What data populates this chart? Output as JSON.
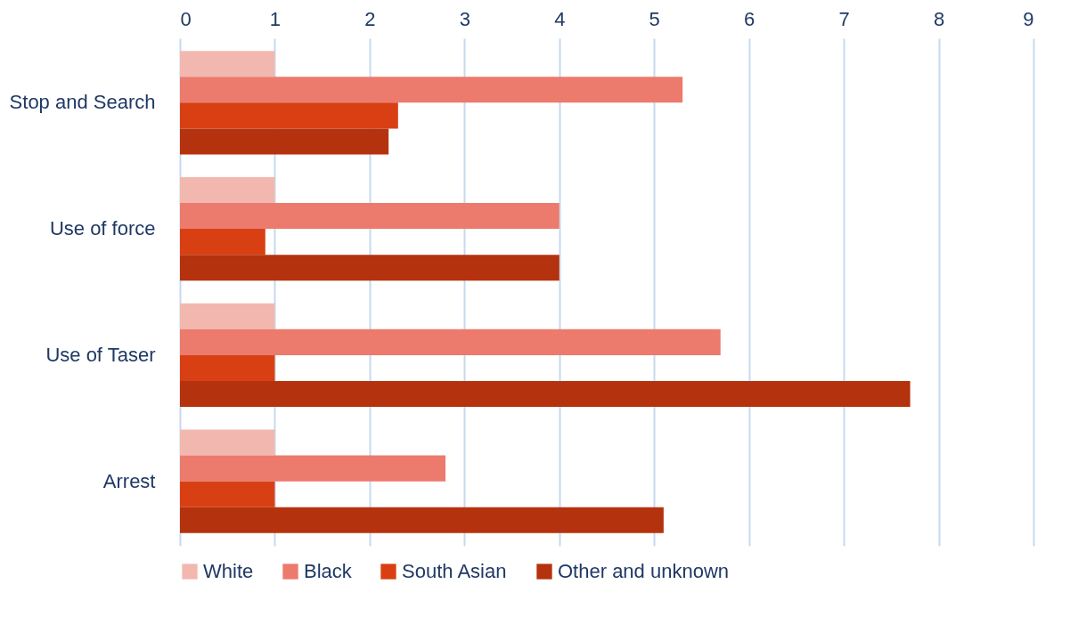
{
  "chart_data": {
    "type": "bar",
    "orientation": "horizontal",
    "categories": [
      "Stop and Search",
      "Use of force",
      "Use of Taser",
      "Arrest"
    ],
    "series": [
      {
        "name": "White",
        "color": "#f2b8b0",
        "values": [
          1.0,
          1.0,
          1.0,
          1.0
        ]
      },
      {
        "name": "Black",
        "color": "#ec7a6d",
        "values": [
          5.3,
          4.0,
          5.7,
          2.8
        ]
      },
      {
        "name": "South Asian",
        "color": "#d84014",
        "values": [
          2.3,
          0.9,
          1.0,
          1.0
        ]
      },
      {
        "name": "Other and unknown",
        "color": "#b5320e",
        "values": [
          2.2,
          4.0,
          7.7,
          5.1
        ]
      }
    ],
    "xlim": [
      0,
      9
    ],
    "xticks": [
      0,
      1,
      2,
      3,
      4,
      5,
      6,
      7,
      8,
      9
    ],
    "grid": "x",
    "legend": "bottom"
  }
}
